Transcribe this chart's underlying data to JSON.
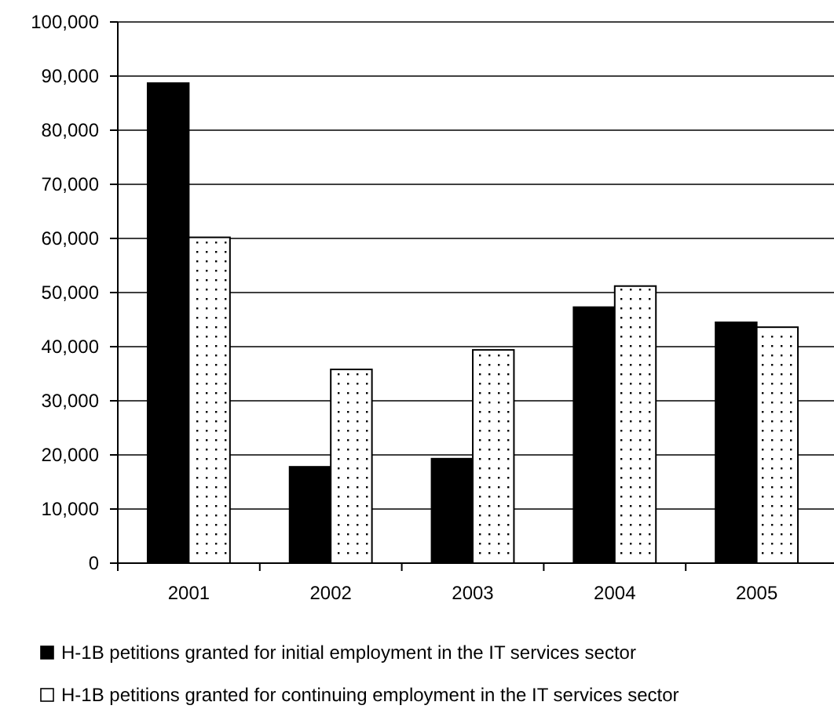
{
  "chart_data": {
    "type": "bar",
    "categories": [
      "2001",
      "2002",
      "2003",
      "2004",
      "2005"
    ],
    "series": [
      {
        "name": "H-1B petitions granted for initial employment in the IT services sector",
        "color": "#000000",
        "values": [
          88700,
          17800,
          19300,
          47300,
          44500
        ]
      },
      {
        "name": "H-1B petitions granted for continuing employment in the IT services sector",
        "color": "#ffffff",
        "values": [
          60200,
          35800,
          39400,
          51200,
          43600
        ]
      }
    ],
    "ylim": [
      0,
      100000
    ],
    "yticks": [
      {
        "value": 0,
        "label": "0"
      },
      {
        "value": 10000,
        "label": "10,000"
      },
      {
        "value": 20000,
        "label": "20,000"
      },
      {
        "value": 30000,
        "label": "30,000"
      },
      {
        "value": 40000,
        "label": "40,000"
      },
      {
        "value": 50000,
        "label": "50,000"
      },
      {
        "value": 60000,
        "label": "60,000"
      },
      {
        "value": 70000,
        "label": "70,000"
      },
      {
        "value": 80000,
        "label": "80,000"
      },
      {
        "value": 90000,
        "label": "90,000"
      },
      {
        "value": 100000,
        "label": "100,000"
      }
    ],
    "grid": "y",
    "legend": "bottom"
  }
}
